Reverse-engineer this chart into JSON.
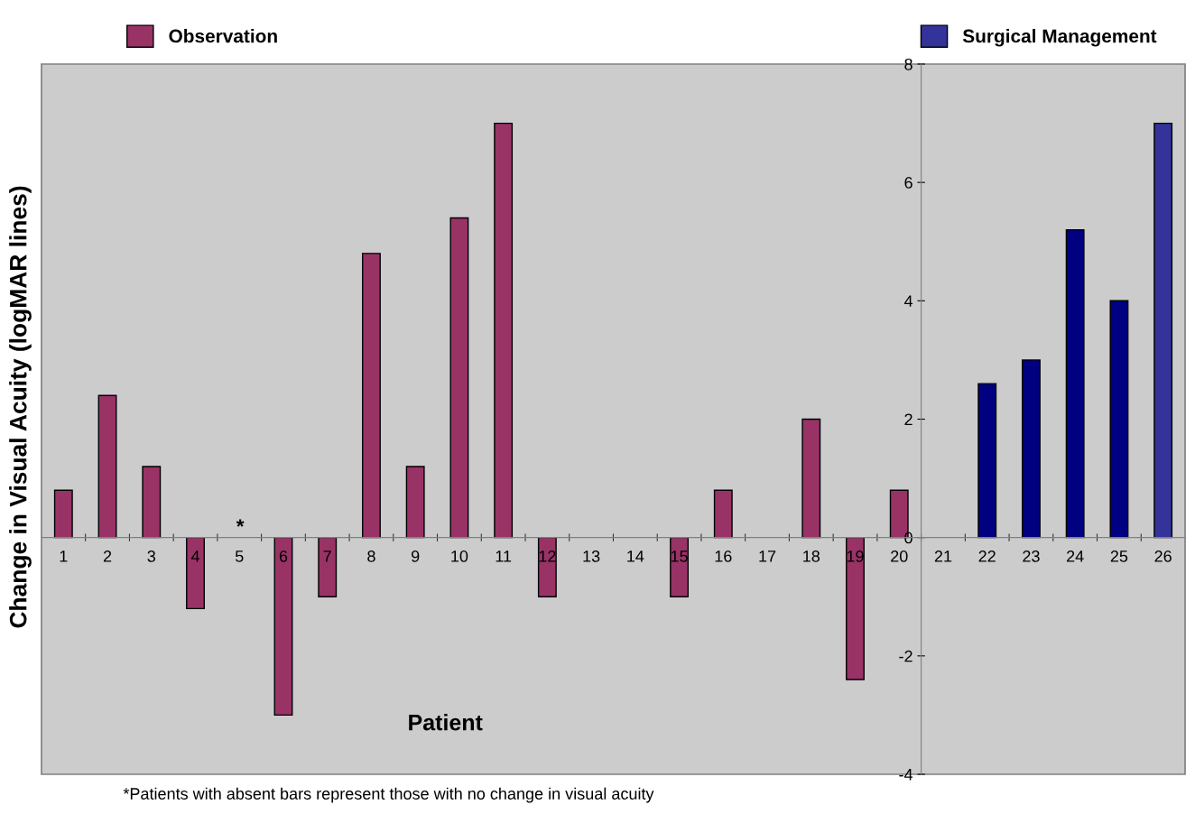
{
  "chart_data": {
    "type": "bar",
    "xlabel": "Patient",
    "ylabel": "Change in Visual Acuity (logMAR lines)",
    "categories": [
      "1",
      "2",
      "3",
      "4",
      "5",
      "6",
      "7",
      "8",
      "9",
      "10",
      "11",
      "12",
      "13",
      "14",
      "15",
      "16",
      "17",
      "18",
      "19",
      "20",
      "21",
      "22",
      "23",
      "24",
      "25",
      "26"
    ],
    "series": [
      {
        "name": "Observation",
        "color": "#993366",
        "values": [
          0.8,
          2.4,
          1.2,
          -1.2,
          null,
          -3,
          -1,
          4.8,
          1.2,
          5.4,
          7,
          -1,
          null,
          null,
          -1,
          0.8,
          null,
          2,
          -2.4,
          0.8,
          null,
          null,
          null,
          null,
          null,
          null
        ]
      },
      {
        "name": "Surgical Management",
        "color": "#333399",
        "colors": [
          "#000080",
          "#000080",
          "#000080",
          "#000080",
          "#000080",
          "#000080",
          "#000080",
          "#000080",
          "#000080",
          "#000080",
          "#000080",
          "#000080",
          "#000080",
          "#000080",
          "#000080",
          "#000080",
          "#000080",
          "#000080",
          "#000080",
          "#000080",
          "#000080",
          "#000080",
          "#000080",
          "#000080",
          "#000080",
          "#333399"
        ],
        "values": [
          null,
          null,
          null,
          null,
          null,
          null,
          null,
          null,
          null,
          null,
          null,
          null,
          null,
          null,
          null,
          null,
          null,
          null,
          null,
          null,
          null,
          2.6,
          3,
          5.2,
          4,
          7
        ]
      }
    ],
    "ylim": [
      -4,
      8
    ],
    "yticks": [
      -4,
      -2,
      0,
      2,
      4,
      6,
      8
    ],
    "grid": false,
    "legend": "top",
    "annotations": [
      "*",
      "*Patients with absent bars represent those with no change in visual acuity"
    ]
  }
}
